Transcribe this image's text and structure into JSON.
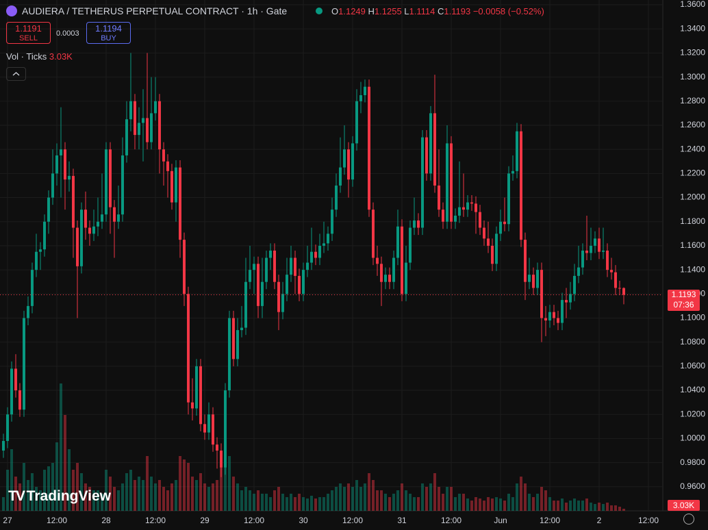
{
  "header": {
    "symbol": "AUDIERA / TETHERUS PERPETUAL CONTRACT · 1h · Gate",
    "o": "O",
    "h": "H",
    "l": "L",
    "c": "C",
    "change": "−0.0058 (−0.52%)",
    "sell_price": 1.1191,
    "sell": "SELL",
    "spread": 0.0003,
    "buy_price": 1.1194,
    "buy": "BUY",
    "vol_label": "Vol · Ticks",
    "vol_value": "3.03K",
    "logo": "TradingView",
    "countdown": "07:36"
  },
  "chart_data": {
    "type": "candlestick",
    "up_color": "#089981",
    "down_color": "#f23645",
    "grid": true,
    "ylim": [
      0.94,
      1.364
    ],
    "yticks": [
      {
        "value": 0.96,
        "label": "0.9600"
      },
      {
        "value": 0.98,
        "label": "0.9800"
      },
      {
        "value": 1.0,
        "label": "1.0000"
      },
      {
        "value": 1.02,
        "label": "1.0200"
      },
      {
        "value": 1.04,
        "label": "1.0400"
      },
      {
        "value": 1.06,
        "label": "1.0600"
      },
      {
        "value": 1.08,
        "label": "1.0800"
      },
      {
        "value": 1.1,
        "label": "1.1000"
      },
      {
        "value": 1.12,
        "label": "1.1200"
      },
      {
        "value": 1.14,
        "label": "1.1400"
      },
      {
        "value": 1.16,
        "label": "1.1600"
      },
      {
        "value": 1.18,
        "label": "1.1800"
      },
      {
        "value": 1.2,
        "label": "1.2000"
      },
      {
        "value": 1.22,
        "label": "1.2200"
      },
      {
        "value": 1.24,
        "label": "1.2400"
      },
      {
        "value": 1.26,
        "label": "1.2600"
      },
      {
        "value": 1.28,
        "label": "1.2800"
      },
      {
        "value": 1.3,
        "label": "1.3000"
      },
      {
        "value": 1.32,
        "label": "1.3200"
      },
      {
        "value": 1.34,
        "label": "1.3400"
      },
      {
        "value": 1.36,
        "label": "1.3600"
      }
    ],
    "categories": [
      null,
      "27",
      null,
      null,
      null,
      null,
      null,
      null,
      null,
      null,
      null,
      null,
      null,
      "12:00",
      null,
      null,
      null,
      null,
      null,
      null,
      null,
      null,
      null,
      null,
      null,
      "28",
      null,
      null,
      null,
      null,
      null,
      null,
      null,
      null,
      null,
      null,
      null,
      "12:00",
      null,
      null,
      null,
      null,
      null,
      null,
      null,
      null,
      null,
      null,
      null,
      "29",
      null,
      null,
      null,
      null,
      null,
      null,
      null,
      null,
      null,
      null,
      null,
      "12:00",
      null,
      null,
      null,
      null,
      null,
      null,
      null,
      null,
      null,
      null,
      null,
      "30",
      null,
      null,
      null,
      null,
      null,
      null,
      null,
      null,
      null,
      null,
      null,
      "12:00",
      null,
      null,
      null,
      null,
      null,
      null,
      null,
      null,
      null,
      null,
      null,
      "31",
      null,
      null,
      null,
      null,
      null,
      null,
      null,
      null,
      null,
      null,
      null,
      "12:00",
      null,
      null,
      null,
      null,
      null,
      null,
      null,
      null,
      null,
      null,
      null,
      "Jun",
      null,
      null,
      null,
      null,
      null,
      null,
      null,
      null,
      null,
      null,
      null,
      "12:00",
      null,
      null,
      null,
      null,
      null,
      null,
      null,
      null,
      null,
      null,
      null,
      "2",
      null,
      null,
      null,
      null,
      null,
      null,
      null,
      null,
      null,
      null,
      null,
      "12:00"
    ],
    "open": [
      0.99,
      0.998,
      1.02,
      1.058,
      1.04,
      1.024,
      1.1,
      1.11,
      1.14,
      1.155,
      1.157,
      1.18,
      1.2,
      1.22,
      1.235,
      1.24,
      1.215,
      1.218,
      1.175,
      1.143,
      1.19,
      1.175,
      1.17,
      1.176,
      1.18,
      1.186,
      1.24,
      1.192,
      1.18,
      1.186,
      1.235,
      1.265,
      1.28,
      1.252,
      1.262,
      1.266,
      1.246,
      1.27,
      1.28,
      1.24,
      1.23,
      1.222,
      1.196,
      1.225,
      1.165,
      1.12,
      1.03,
      1.025,
      1.06,
      1.012,
      1.005,
      1.02,
      0.995,
      0.99,
      0.976,
      1.04,
      1.1,
      1.066,
      1.09,
      1.092,
      1.13,
      1.14,
      1.145,
      1.11,
      1.13,
      1.15,
      1.156,
      1.13,
      1.105,
      1.12,
      1.136,
      1.15,
      1.135,
      1.12,
      1.14,
      1.146,
      1.155,
      1.15,
      1.16,
      1.162,
      1.17,
      1.19,
      1.21,
      1.225,
      1.24,
      1.215,
      1.245,
      1.28,
      1.285,
      1.292,
      1.19,
      1.15,
      1.145,
      1.13,
      1.136,
      1.13,
      1.15,
      1.176,
      1.12,
      1.146,
      1.175,
      1.181,
      1.175,
      1.25,
      1.22,
      1.27,
      1.21,
      1.19,
      1.18,
      1.245,
      1.18,
      1.185,
      1.192,
      1.19,
      1.196,
      1.195,
      1.188,
      1.175,
      1.166,
      1.16,
      1.145,
      1.17,
      1.18,
      1.178,
      1.22,
      1.222,
      1.255,
      1.165,
      1.13,
      1.136,
      1.125,
      1.14,
      1.1,
      1.098,
      1.105,
      1.1,
      1.096,
      1.115,
      1.113,
      1.12,
      1.135,
      1.142,
      1.156,
      1.154,
      1.16,
      1.166,
      1.155,
      1.156,
      1.14,
      1.138,
      1.125,
      1.1249,
      null,
      null,
      null,
      null,
      null,
      null
    ],
    "high": [
      1.004,
      1.026,
      1.064,
      1.07,
      1.046,
      1.106,
      1.118,
      1.146,
      1.17,
      1.163,
      1.186,
      1.206,
      1.24,
      1.245,
      1.275,
      1.246,
      1.23,
      1.224,
      1.181,
      1.196,
      1.205,
      1.181,
      1.19,
      1.2,
      1.22,
      1.246,
      1.246,
      1.198,
      1.21,
      1.25,
      1.28,
      1.32,
      1.286,
      1.275,
      1.29,
      1.32,
      1.3,
      1.3,
      1.286,
      1.246,
      1.236,
      1.228,
      1.231,
      1.231,
      1.171,
      1.126,
      1.05,
      1.066,
      1.066,
      1.02,
      1.03,
      1.026,
      1.001,
      0.996,
      1.046,
      1.106,
      1.106,
      1.1,
      1.11,
      1.15,
      1.16,
      1.151,
      1.151,
      1.15,
      1.156,
      1.162,
      1.162,
      1.136,
      1.13,
      1.15,
      1.16,
      1.156,
      1.141,
      1.146,
      1.16,
      1.175,
      1.161,
      1.17,
      1.18,
      1.176,
      1.2,
      1.22,
      1.25,
      1.26,
      1.246,
      1.251,
      1.29,
      1.296,
      1.298,
      1.298,
      1.196,
      1.16,
      1.151,
      1.142,
      1.142,
      1.156,
      1.19,
      1.182,
      1.16,
      1.181,
      1.2,
      1.187,
      1.256,
      1.256,
      1.276,
      1.302,
      1.24,
      1.196,
      1.26,
      1.251,
      1.191,
      1.23,
      1.22,
      1.202,
      1.202,
      1.201,
      1.194,
      1.181,
      1.18,
      1.166,
      1.176,
      1.19,
      1.2,
      1.226,
      1.235,
      1.262,
      1.261,
      1.171,
      1.15,
      1.142,
      1.146,
      1.146,
      1.11,
      1.111,
      1.111,
      1.106,
      1.121,
      1.125,
      1.13,
      1.145,
      1.16,
      1.162,
      1.185,
      1.175,
      1.172,
      1.175,
      1.175,
      1.162,
      1.15,
      1.144,
      1.131,
      1.1255,
      null,
      null,
      null,
      null,
      null,
      null
    ],
    "low": [
      0.984,
      0.992,
      1.014,
      1.034,
      1.018,
      1.018,
      1.094,
      1.104,
      1.134,
      1.14,
      1.151,
      1.17,
      1.194,
      1.21,
      1.2,
      1.19,
      1.205,
      1.15,
      1.1,
      1.137,
      1.165,
      1.16,
      1.164,
      1.168,
      1.174,
      1.18,
      1.17,
      1.15,
      1.174,
      1.18,
      1.229,
      1.255,
      1.24,
      1.24,
      1.23,
      1.24,
      1.24,
      1.264,
      1.22,
      1.21,
      1.2,
      1.19,
      1.18,
      1.15,
      1.11,
      1.02,
      1.015,
      1.019,
      1.006,
      0.999,
      0.999,
      0.989,
      0.975,
      0.968,
      0.97,
      1.034,
      1.06,
      1.06,
      1.084,
      1.086,
      1.124,
      1.12,
      1.1,
      1.1,
      1.124,
      1.14,
      1.124,
      1.09,
      1.099,
      1.114,
      1.13,
      1.12,
      1.114,
      1.114,
      1.134,
      1.14,
      1.144,
      1.144,
      1.154,
      1.156,
      1.164,
      1.184,
      1.204,
      1.219,
      1.2,
      1.209,
      1.239,
      1.27,
      1.279,
      1.184,
      1.144,
      1.135,
      1.11,
      1.124,
      1.124,
      1.124,
      1.144,
      1.114,
      1.114,
      1.14,
      1.169,
      1.169,
      1.169,
      1.214,
      1.214,
      1.204,
      1.184,
      1.174,
      1.174,
      1.174,
      1.174,
      1.179,
      1.184,
      1.184,
      1.189,
      1.17,
      1.169,
      1.16,
      1.154,
      1.139,
      1.139,
      1.164,
      1.172,
      1.172,
      1.214,
      1.216,
      1.159,
      1.115,
      1.124,
      1.119,
      1.119,
      1.08,
      1.085,
      1.092,
      1.094,
      1.09,
      1.09,
      1.1,
      1.107,
      1.114,
      1.129,
      1.136,
      1.148,
      1.148,
      1.154,
      1.149,
      1.149,
      1.134,
      1.132,
      1.119,
      1.119,
      1.1114,
      null,
      null,
      null,
      null,
      null,
      null
    ],
    "close": [
      0.998,
      1.02,
      1.058,
      1.04,
      1.024,
      1.1,
      1.11,
      1.14,
      1.155,
      1.157,
      1.18,
      1.2,
      1.22,
      1.235,
      1.24,
      1.215,
      1.218,
      1.175,
      1.143,
      1.19,
      1.175,
      1.17,
      1.176,
      1.18,
      1.186,
      1.24,
      1.192,
      1.18,
      1.186,
      1.235,
      1.265,
      1.28,
      1.252,
      1.262,
      1.266,
      1.246,
      1.27,
      1.28,
      1.24,
      1.23,
      1.222,
      1.196,
      1.225,
      1.165,
      1.12,
      1.03,
      1.025,
      1.06,
      1.012,
      1.005,
      1.02,
      0.995,
      0.99,
      0.976,
      1.04,
      1.1,
      1.066,
      1.09,
      1.092,
      1.13,
      1.14,
      1.145,
      1.11,
      1.13,
      1.15,
      1.156,
      1.13,
      1.105,
      1.12,
      1.136,
      1.15,
      1.135,
      1.12,
      1.14,
      1.146,
      1.155,
      1.15,
      1.16,
      1.162,
      1.17,
      1.19,
      1.21,
      1.225,
      1.24,
      1.215,
      1.245,
      1.28,
      1.285,
      1.292,
      1.19,
      1.15,
      1.145,
      1.13,
      1.136,
      1.13,
      1.15,
      1.176,
      1.12,
      1.146,
      1.175,
      1.181,
      1.175,
      1.25,
      1.22,
      1.27,
      1.21,
      1.19,
      1.18,
      1.245,
      1.18,
      1.185,
      1.192,
      1.19,
      1.196,
      1.195,
      1.188,
      1.175,
      1.166,
      1.16,
      1.145,
      1.17,
      1.18,
      1.178,
      1.22,
      1.222,
      1.255,
      1.165,
      1.13,
      1.136,
      1.125,
      1.14,
      1.1,
      1.098,
      1.105,
      1.1,
      1.096,
      1.115,
      1.113,
      1.12,
      1.135,
      1.142,
      1.156,
      1.154,
      1.16,
      1.166,
      1.155,
      1.156,
      1.14,
      1.138,
      1.125,
      1.1249,
      1.1193,
      null,
      null,
      null,
      null,
      null,
      null
    ],
    "volume": [
      20000,
      60000,
      90000,
      50000,
      40000,
      70000,
      45000,
      55000,
      35000,
      30000,
      60000,
      65000,
      70000,
      100000,
      186000,
      140000,
      90000,
      60000,
      70000,
      55000,
      40000,
      35000,
      30000,
      30000,
      25000,
      60000,
      50000,
      35000,
      30000,
      40000,
      55000,
      60000,
      45000,
      50000,
      45000,
      80000,
      50000,
      40000,
      45000,
      35000,
      30000,
      40000,
      45000,
      80000,
      75000,
      70000,
      50000,
      45000,
      55000,
      40000,
      35000,
      40000,
      45000,
      70000,
      90000,
      80000,
      50000,
      40000,
      30000,
      35000,
      30000,
      25000,
      30000,
      25000,
      25000,
      20000,
      30000,
      35000,
      25000,
      20000,
      25000,
      20000,
      25000,
      20000,
      18000,
      22000,
      18000,
      20000,
      20000,
      25000,
      30000,
      35000,
      40000,
      35000,
      40000,
      35000,
      45000,
      35000,
      40000,
      55000,
      45000,
      30000,
      30000,
      25000,
      20000,
      25000,
      30000,
      40000,
      30000,
      25000,
      20000,
      20000,
      40000,
      35000,
      40000,
      55000,
      35000,
      25000,
      35000,
      35000,
      20000,
      25000,
      25000,
      18000,
      15000,
      20000,
      18000,
      15000,
      20000,
      18000,
      20000,
      18000,
      15000,
      25000,
      20000,
      40000,
      50000,
      40000,
      25000,
      20000,
      25000,
      35000,
      30000,
      20000,
      15000,
      15000,
      18000,
      12000,
      15000,
      18000,
      15000,
      15000,
      18000,
      12000,
      10000,
      12000,
      10000,
      12000,
      8000,
      8000,
      6000,
      3030,
      null,
      null,
      null,
      null,
      null,
      null
    ]
  }
}
